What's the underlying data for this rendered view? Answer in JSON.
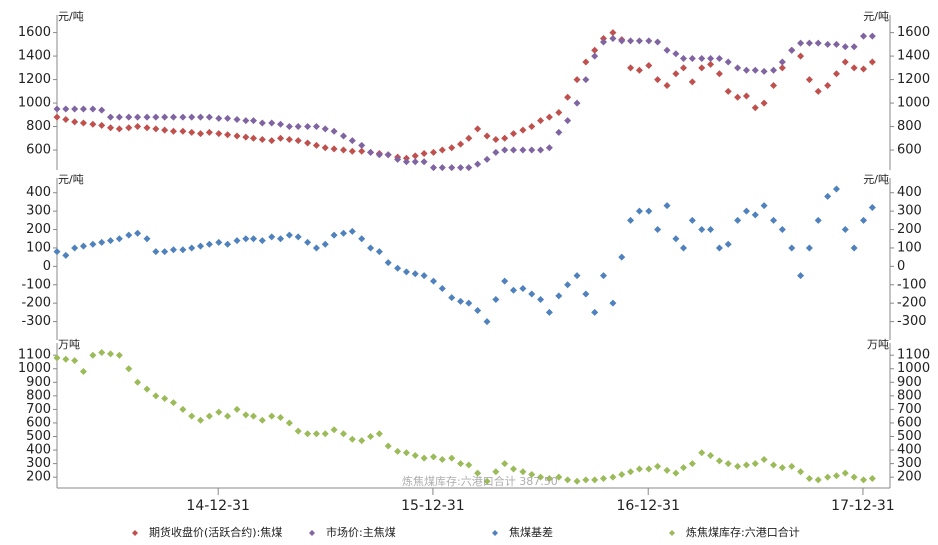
{
  "chart_data": {
    "type": "scatter",
    "x": [
      "14-04-01",
      "14-04-16",
      "14-05-01",
      "14-05-16",
      "14-06-01",
      "14-06-16",
      "14-07-01",
      "14-07-16",
      "14-08-01",
      "14-08-16",
      "14-09-01",
      "14-09-16",
      "14-10-01",
      "14-10-16",
      "14-11-01",
      "14-11-16",
      "14-12-01",
      "14-12-16",
      "15-01-01",
      "15-01-16",
      "15-02-01",
      "15-02-16",
      "15-03-01",
      "15-03-16",
      "15-04-01",
      "15-04-16",
      "15-05-01",
      "15-05-16",
      "15-06-01",
      "15-06-16",
      "15-07-01",
      "15-07-16",
      "15-08-01",
      "15-08-16",
      "15-09-01",
      "15-09-16",
      "15-10-01",
      "15-10-16",
      "15-11-01",
      "15-11-16",
      "15-12-01",
      "15-12-16",
      "16-01-01",
      "16-01-16",
      "16-02-01",
      "16-02-16",
      "16-03-01",
      "16-03-16",
      "16-04-01",
      "16-04-16",
      "16-05-01",
      "16-05-16",
      "16-06-01",
      "16-06-16",
      "16-07-01",
      "16-07-16",
      "16-08-01",
      "16-08-16",
      "16-09-01",
      "16-09-16",
      "16-10-01",
      "16-10-16",
      "16-11-01",
      "16-11-16",
      "16-12-01",
      "16-12-16",
      "17-01-01",
      "17-01-16",
      "17-02-01",
      "17-02-16",
      "17-03-01",
      "17-03-16",
      "17-04-01",
      "17-04-16",
      "17-05-01",
      "17-05-16",
      "17-06-01",
      "17-06-16",
      "17-07-01",
      "17-07-16",
      "17-08-01",
      "17-08-16",
      "17-09-01",
      "17-09-16",
      "17-10-01",
      "17-10-16",
      "17-11-01",
      "17-11-16",
      "17-12-01",
      "17-12-16",
      "18-01-01",
      "18-01-16"
    ],
    "xlim": [
      "14-04-01",
      "18-02-15"
    ],
    "xticks": [
      "14-12-31",
      "15-12-31",
      "16-12-31",
      "17-12-31"
    ],
    "annotation": "炼焦煤库存:六港口合计 387.50",
    "panels": [
      {
        "unit": "元/吨",
        "ylim": [
          430,
          1750
        ],
        "yticks": [
          600,
          800,
          1000,
          1200,
          1400,
          1600
        ],
        "series": [
          {
            "name": "期货收盘价(活跃合约):焦煤",
            "color": "#c0504d",
            "values": [
              880,
              860,
              840,
              830,
              820,
              810,
              790,
              780,
              790,
              800,
              790,
              780,
              770,
              760,
              760,
              750,
              740,
              750,
              740,
              730,
              720,
              710,
              700,
              690,
              680,
              700,
              690,
              680,
              660,
              640,
              620,
              610,
              600,
              590,
              590,
              580,
              570,
              560,
              540,
              530,
              550,
              570,
              580,
              600,
              620,
              650,
              700,
              780,
              720,
              690,
              700,
              740,
              770,
              800,
              850,
              880,
              920,
              1050,
              1200,
              1350,
              1450,
              1550,
              1600,
              1540,
              1300,
              1280,
              1320,
              1200,
              1150,
              1250,
              1300,
              1180,
              1300,
              1330,
              1250,
              1100,
              1050,
              1060,
              960,
              1000,
              1150,
              1300,
              1450,
              1400,
              1200,
              1100,
              1150,
              1250,
              1350,
              1300,
              1290,
              1350
            ]
          },
          {
            "name": "市场价:主焦煤",
            "color": "#8064a2",
            "values": [
              950,
              950,
              950,
              950,
              950,
              940,
              880,
              880,
              880,
              880,
              880,
              880,
              880,
              880,
              880,
              880,
              880,
              880,
              870,
              870,
              860,
              850,
              850,
              830,
              830,
              820,
              800,
              800,
              800,
              800,
              780,
              760,
              720,
              680,
              640,
              580,
              560,
              560,
              520,
              500,
              500,
              500,
              450,
              450,
              450,
              450,
              450,
              480,
              520,
              580,
              600,
              600,
              600,
              600,
              600,
              620,
              750,
              850,
              1000,
              1200,
              1400,
              1520,
              1550,
              1530,
              1530,
              1530,
              1530,
              1520,
              1450,
              1420,
              1380,
              1380,
              1380,
              1380,
              1380,
              1350,
              1300,
              1280,
              1280,
              1270,
              1280,
              1350,
              1450,
              1510,
              1510,
              1510,
              1500,
              1500,
              1480,
              1480,
              1570,
              1570
            ]
          }
        ]
      },
      {
        "unit": "元/吨",
        "ylim": [
          -400,
          480
        ],
        "yticks": [
          -300,
          -200,
          -100,
          0,
          100,
          200,
          300,
          400
        ],
        "series": [
          {
            "name": "焦煤基差",
            "color": "#4f81bd",
            "values": [
              80,
              60,
              100,
              110,
              120,
              130,
              140,
              150,
              170,
              180,
              150,
              80,
              80,
              90,
              90,
              100,
              110,
              120,
              130,
              120,
              140,
              150,
              150,
              140,
              160,
              150,
              170,
              160,
              130,
              100,
              120,
              170,
              180,
              190,
              150,
              100,
              80,
              20,
              -10,
              -30,
              -40,
              -50,
              -80,
              -120,
              -170,
              -190,
              -200,
              -240,
              -300,
              -180,
              -80,
              -130,
              -120,
              -150,
              -180,
              -250,
              -160,
              -100,
              -50,
              -150,
              -250,
              -50,
              -200,
              50,
              250,
              300,
              300,
              200,
              330,
              150,
              100,
              250,
              200,
              200,
              100,
              120,
              250,
              300,
              280,
              330,
              250,
              200,
              100,
              -50,
              100,
              250,
              380,
              420,
              200,
              100,
              250,
              320
            ]
          }
        ]
      },
      {
        "unit": "万吨",
        "ylim": [
          120,
          1190
        ],
        "yticks": [
          200,
          300,
          400,
          500,
          600,
          700,
          800,
          900,
          1000,
          1100
        ],
        "series": [
          {
            "name": "炼焦煤库存:六港口合计",
            "color": "#9bbb59",
            "values": [
              1080,
              1070,
              1060,
              980,
              1100,
              1120,
              1110,
              1100,
              1000,
              900,
              850,
              800,
              780,
              750,
              700,
              650,
              620,
              650,
              680,
              650,
              700,
              660,
              650,
              620,
              650,
              640,
              600,
              540,
              520,
              520,
              520,
              550,
              520,
              480,
              470,
              500,
              520,
              430,
              390,
              380,
              360,
              340,
              350,
              330,
              340,
              300,
              290,
              230,
              170,
              240,
              300,
              260,
              240,
              220,
              200,
              190,
              200,
              180,
              170,
              180,
              180,
              190,
              200,
              220,
              240,
              260,
              260,
              280,
              250,
              230,
              270,
              300,
              380,
              360,
              320,
              300,
              280,
              290,
              300,
              330,
              290,
              270,
              280,
              240,
              190,
              180,
              200,
              210,
              230,
              200,
              180,
              190
            ]
          }
        ]
      }
    ]
  }
}
